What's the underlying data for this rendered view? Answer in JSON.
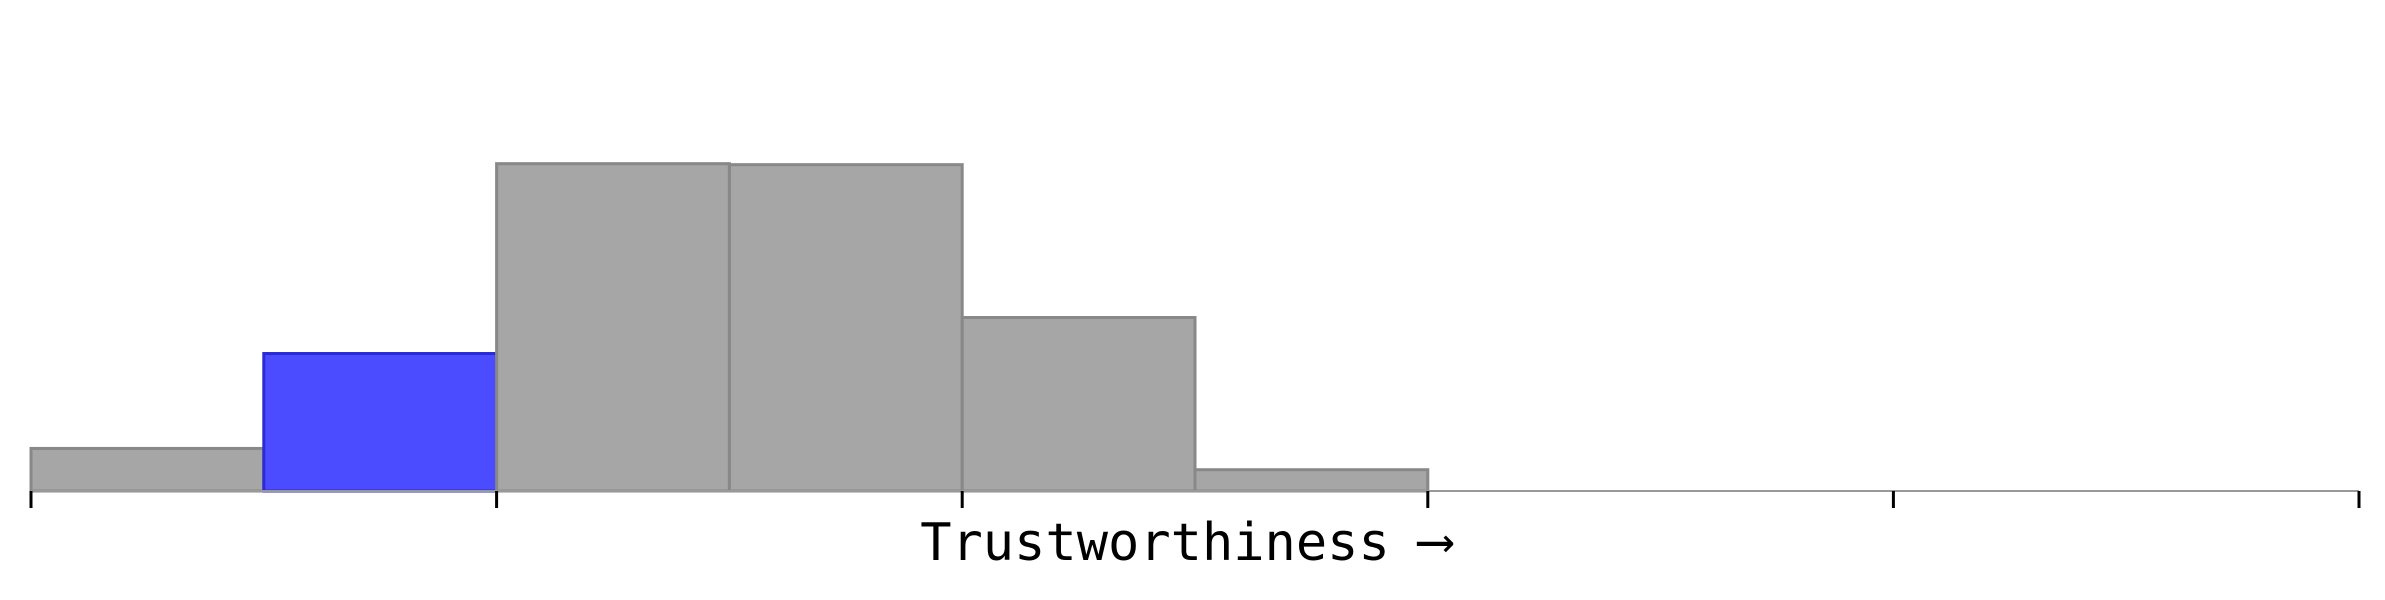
{
  "chart_data": {
    "type": "bar",
    "title": "",
    "xlabel": "Trustworthiness",
    "xlabel_arrow": "⟶",
    "ylabel": "",
    "bins": [
      {
        "bin": 1,
        "value": 1.3,
        "highlighted": false
      },
      {
        "bin": 2,
        "value": 4.2,
        "highlighted": true
      },
      {
        "bin": 3,
        "value": 10.0,
        "highlighted": false
      },
      {
        "bin": 4,
        "value": 9.97,
        "highlighted": false
      },
      {
        "bin": 5,
        "value": 5.3,
        "highlighted": false
      },
      {
        "bin": 6,
        "value": 0.65,
        "highlighted": false
      },
      {
        "bin": 7,
        "value": 0,
        "highlighted": false
      },
      {
        "bin": 8,
        "value": 0,
        "highlighted": false
      },
      {
        "bin": 9,
        "value": 0,
        "highlighted": false
      },
      {
        "bin": 10,
        "value": 0,
        "highlighted": false
      }
    ],
    "ylim": [
      0,
      15
    ],
    "ticks": 6,
    "grid": false,
    "legend": "none"
  },
  "colors": {
    "bar_fill": "#a6a6a6",
    "bar_stroke": "#888888",
    "highlight_fill": "#4b4bff",
    "highlight_stroke": "#2a2ad6",
    "axis": "#999999",
    "tick": "#000000"
  }
}
